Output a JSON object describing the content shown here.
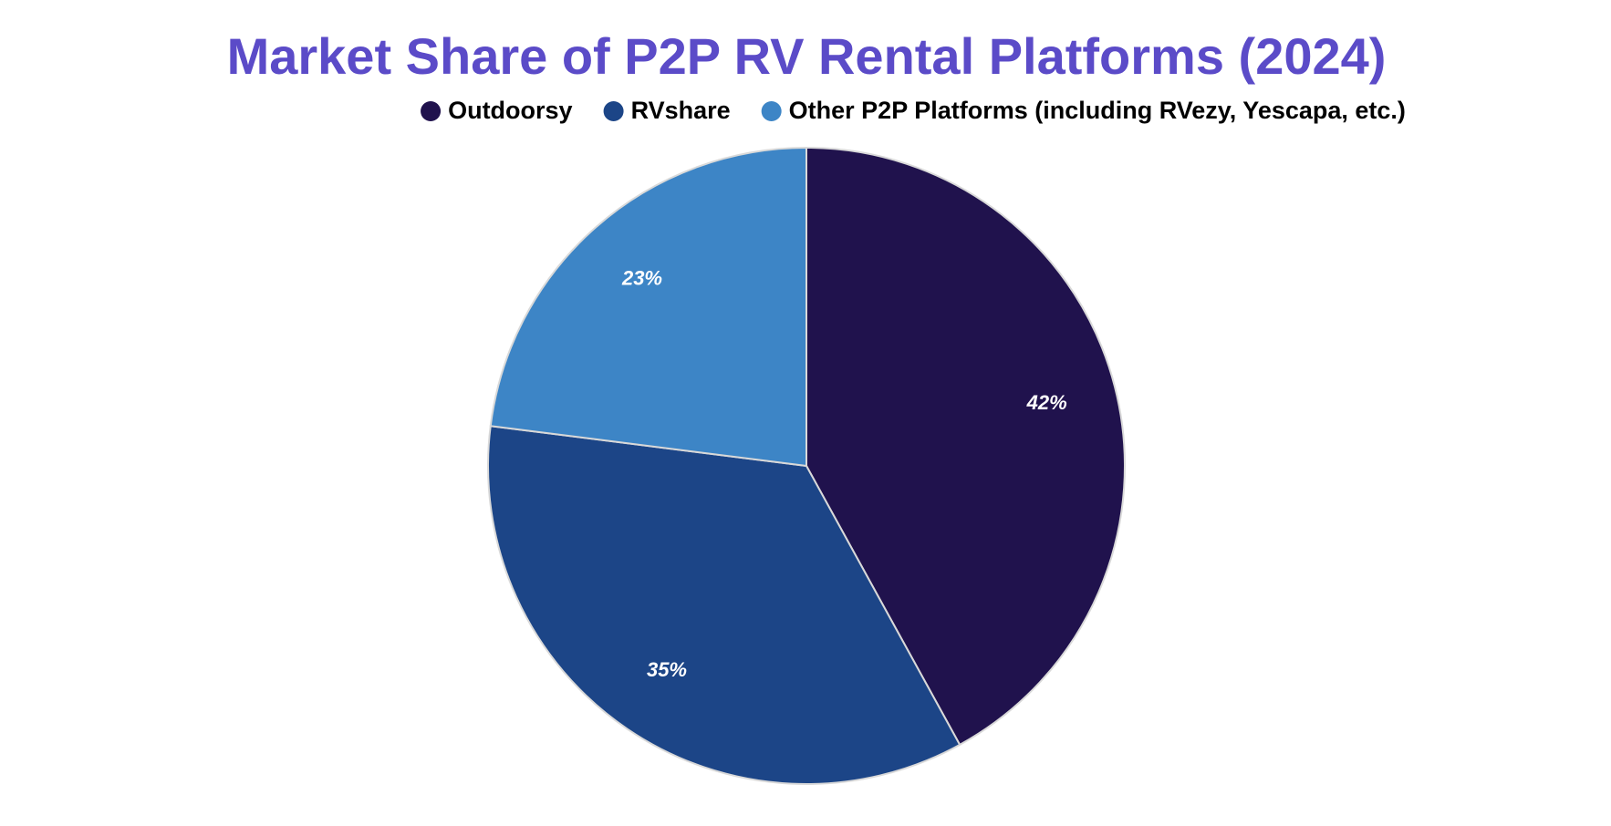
{
  "chart_data": {
    "type": "pie",
    "title": "Market Share of P2P RV Rental Platforms (2024)",
    "categories": [
      "Outdoorsy",
      "RVshare",
      "Other P2P Platforms (including RVezy, Yescapa, etc.)"
    ],
    "values": [
      42,
      35,
      23
    ],
    "value_labels": [
      "42%",
      "35%",
      "23%"
    ],
    "colors": [
      "#20124d",
      "#1c4587",
      "#3d85c6"
    ],
    "legend": "top"
  }
}
